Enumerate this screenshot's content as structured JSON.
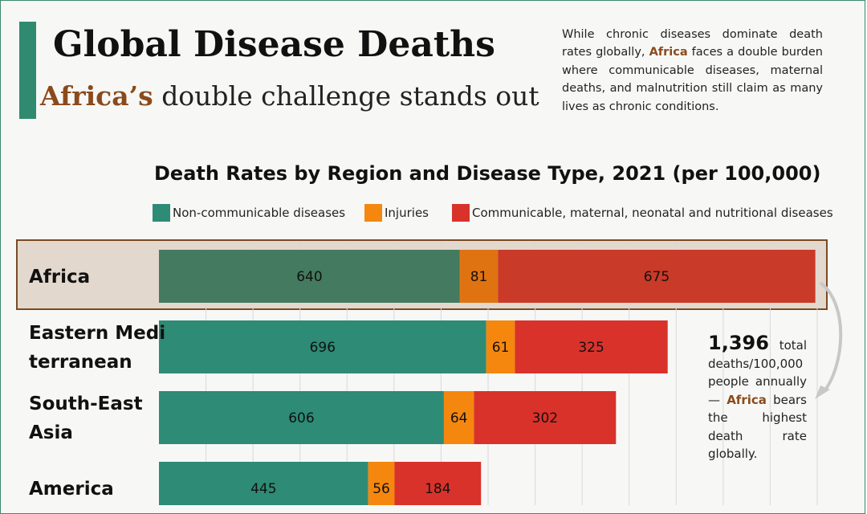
{
  "header": {
    "title": "Global Disease Deaths",
    "subtitle_highlight": "Africa’s",
    "subtitle_rest": "double challenge stands out",
    "description_before": "While chronic diseases dominate death rates globally,",
    "description_highlight": "Africa",
    "description_after": "faces a double burden where communicable diseases, maternal deaths, and malnutrition still claim as many lives as chronic conditions."
  },
  "colors": {
    "ncd": "#2e8b75",
    "injuries": "#f5870e",
    "communicable": "#d9322b",
    "ncd_dark": "#447a5f",
    "injuries_dark": "#e07311",
    "communicable_dark": "#c93a28",
    "highlight_bg": "#e3d8cd",
    "highlight_border": "#7a4a24",
    "accent": "#8b4a1c",
    "accent_bar": "#2f8a70",
    "grid": "#d8d8d8"
  },
  "chart_data": {
    "type": "bar",
    "orientation": "horizontal",
    "stacked": true,
    "title": "Death Rates by Region and Disease Type, 2021 (per 100,000)",
    "categories": [
      "Africa",
      "Eastern Mediterranean",
      "South-East Asia",
      "America"
    ],
    "category_labels": [
      [
        "Africa"
      ],
      [
        "Eastern Medi",
        "terranean"
      ],
      [
        "South-East",
        "Asia"
      ],
      [
        "America"
      ]
    ],
    "series": [
      {
        "name": "Non-communicable diseases",
        "values": [
          640,
          696,
          606,
          445
        ]
      },
      {
        "name": "Injuries",
        "values": [
          81,
          61,
          64,
          56
        ]
      },
      {
        "name": "Communicable, maternal, neonatal and nutritional diseases",
        "values": [
          675,
          325,
          302,
          184
        ]
      }
    ],
    "highlighted_category": "Africa",
    "xlim": [
      0,
      1400
    ],
    "grid": true,
    "legend": "top"
  },
  "annotation": {
    "value": "1,396",
    "text_after_value": "total deaths/100,000 people annually—",
    "highlight": "Africa",
    "text_after_highlight": "bears the highest death rate globally."
  }
}
